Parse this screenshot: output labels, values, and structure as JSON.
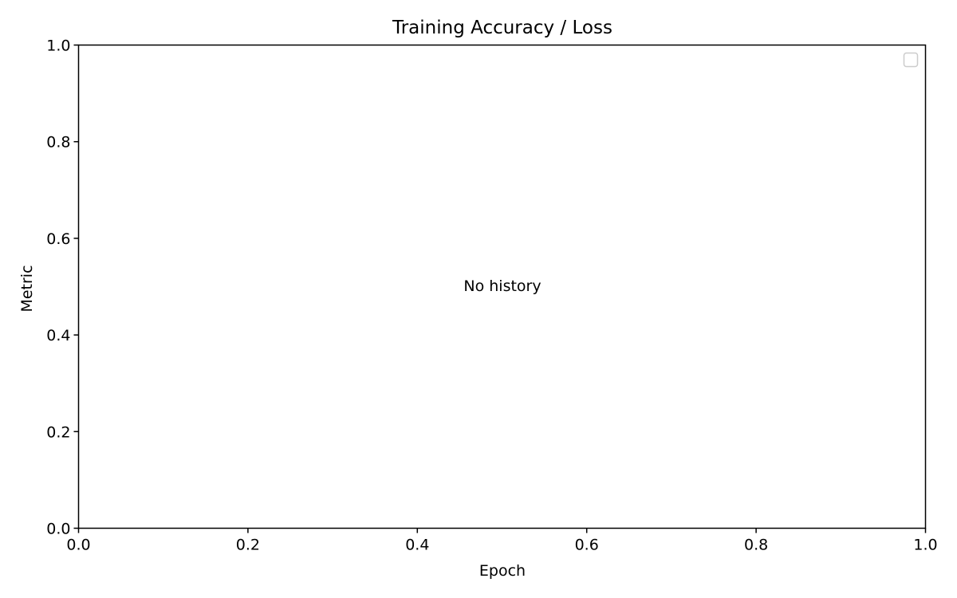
{
  "chart_data": {
    "type": "line",
    "title": "Training Accuracy / Loss",
    "xlabel": "Epoch",
    "ylabel": "Metric",
    "xlim": [
      0,
      1
    ],
    "ylim": [
      0,
      1
    ],
    "xticks": [
      0.0,
      0.2,
      0.4,
      0.6,
      0.8,
      1.0
    ],
    "yticks": [
      0.0,
      0.2,
      0.4,
      0.6,
      0.8,
      1.0
    ],
    "xtick_labels": [
      "0.0",
      "0.2",
      "0.4",
      "0.6",
      "0.8",
      "1.0"
    ],
    "ytick_labels": [
      "0.0",
      "0.2",
      "0.4",
      "0.6",
      "0.8",
      "1.0"
    ],
    "series": [],
    "annotation": "No history",
    "legend": {
      "placement": "top-right",
      "entries": []
    },
    "grid": false
  }
}
